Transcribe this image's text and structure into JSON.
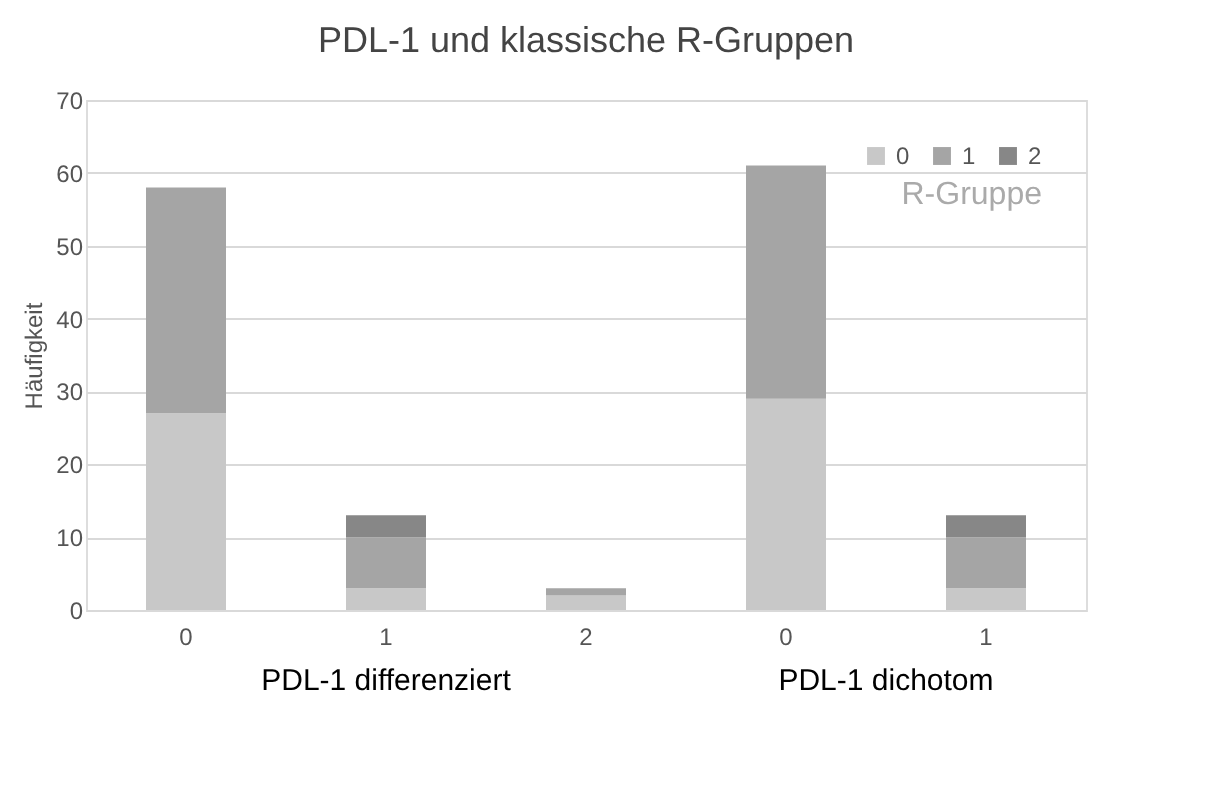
{
  "chart_data": {
    "type": "bar",
    "title": "PDL-1 und klassische R-Gruppen",
    "ylabel": "Häufigkeit",
    "legend_title": "R-Gruppe",
    "categories": [
      "0",
      "1",
      "2",
      "0",
      "1"
    ],
    "series": [
      {
        "name": "0",
        "color": "#c8c8c8",
        "values": [
          27,
          3,
          2,
          29,
          3
        ]
      },
      {
        "name": "1",
        "color": "#a5a5a5",
        "values": [
          31,
          7,
          1,
          32,
          7
        ]
      },
      {
        "name": "2",
        "color": "#878787",
        "values": [
          0,
          3,
          0,
          0,
          3
        ]
      }
    ],
    "stacked": true,
    "ylim": [
      0,
      70
    ],
    "yticks": [
      0,
      10,
      20,
      30,
      40,
      50,
      60,
      70
    ],
    "grid": "y",
    "legend": "top right",
    "annotations": [
      "PDL-1 differenziert",
      "PDL-1 dichotom"
    ]
  }
}
